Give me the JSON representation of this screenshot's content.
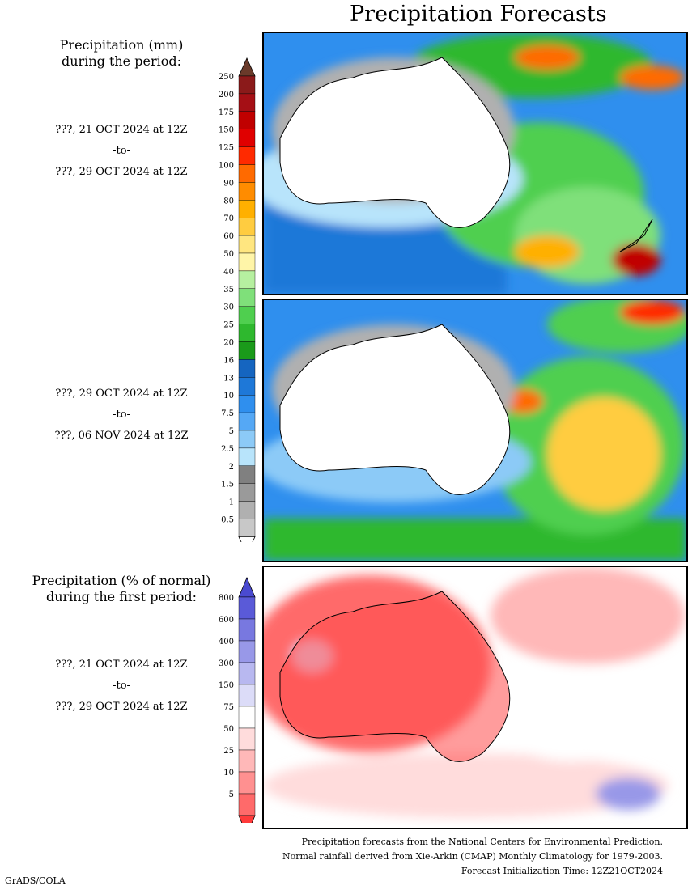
{
  "title": "Precipitation Forecasts",
  "precip_heading": "Precipitation (mm)\nduring the period:",
  "periods": [
    {
      "start": "???, 21 OCT 2024 at 12Z",
      "sep": "-to-",
      "end": "???, 29 OCT 2024 at 12Z"
    },
    {
      "start": "???, 29 OCT 2024 at 12Z",
      "sep": "-to-",
      "end": "???, 06 NOV 2024 at 12Z"
    }
  ],
  "pct_heading": "Precipitation (% of normal)\nduring the first period:",
  "pct_period": {
    "start": "???, 21 OCT 2024 at 12Z",
    "sep": "-to-",
    "end": "???, 29 OCT 2024 at 12Z"
  },
  "precip_scale": {
    "labels": [
      "250",
      "200",
      "175",
      "150",
      "125",
      "100",
      "90",
      "80",
      "70",
      "60",
      "50",
      "40",
      "35",
      "30",
      "25",
      "20",
      "16",
      "13",
      "10",
      "7.5",
      "5",
      "2.5",
      "2",
      "1.5",
      "1",
      "0.5"
    ],
    "colors": [
      "#8b1a1a",
      "#a50f15",
      "#c00000",
      "#e00000",
      "#ff2a00",
      "#ff6a00",
      "#ff8c00",
      "#ffb000",
      "#ffcc40",
      "#ffe680",
      "#fff5a8",
      "#b6f0a0",
      "#7fe07a",
      "#4fcf4f",
      "#2eb82e",
      "#1a9a1a",
      "#1565c0",
      "#1e78d8",
      "#2f8fee",
      "#55a8f5",
      "#8ccaf7",
      "#b8e4fb",
      "#808080",
      "#9a9a9a",
      "#b0b0b0",
      "#c8c8c8"
    ],
    "top_cap": "#6a3a2a",
    "bottom_cap": "#ffffff"
  },
  "pct_scale": {
    "labels": [
      "800",
      "600",
      "400",
      "300",
      "150",
      "75",
      "50",
      "25",
      "10",
      "5"
    ],
    "colors": [
      "#5a5ad8",
      "#7878e0",
      "#9898e8",
      "#b8b8f0",
      "#dcdcf8",
      "#ffffff",
      "#ffdcdc",
      "#ffb8b8",
      "#ff9090",
      "#ff6a6a"
    ],
    "top_cap": "#4a4ad0",
    "bottom_cap": "#ff3a3a"
  },
  "footer": [
    "Precipitation forecasts from the National Centers for Environmental Prediction.",
    "Normal rainfall derived from Xie-Arkin (CMAP) Monthly Climatology for 1979-2003.",
    "Forecast Initialization Time: 12Z21OCT2024"
  ],
  "credit": "GrADS/COLA"
}
